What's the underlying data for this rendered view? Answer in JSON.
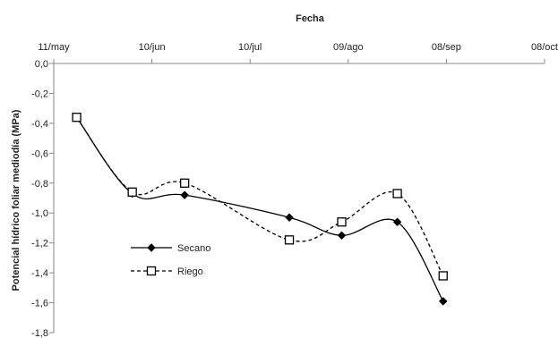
{
  "chart_data": {
    "type": "line",
    "xlabel": "Fecha",
    "ylabel": "Potencial hídrico foliar mediodía (MPa)",
    "x_axis_position": "top",
    "x_ticks": [
      "11/may",
      "10/jun",
      "10/jul",
      "09/ago",
      "08/sep",
      "08/oct"
    ],
    "x_tick_dates": [
      "2012-05-11",
      "2012-06-10",
      "2012-07-10",
      "2012-08-09",
      "2012-09-08",
      "2012-10-08"
    ],
    "ylim": [
      -1.8,
      0.0
    ],
    "y_ticks": [
      "0,0",
      "-0,2",
      "-0,4",
      "-0,6",
      "-0,8",
      "-1,0",
      "-1,2",
      "-1,4",
      "-1,6",
      "-1,8"
    ],
    "grid": false,
    "legend_position": "left-bottom",
    "series": [
      {
        "name": "Secano",
        "line_style": "solid",
        "marker": "filled-diamond",
        "color": "#000000",
        "x": [
          "2012-05-18",
          "2012-06-04",
          "2012-06-20",
          "2012-07-22",
          "2012-08-07",
          "2012-08-24",
          "2012-09-07"
        ],
        "y": [
          -0.36,
          -0.87,
          -0.88,
          -1.03,
          -1.15,
          -1.06,
          -1.59
        ]
      },
      {
        "name": "Riego",
        "line_style": "dashed",
        "marker": "open-square",
        "color": "#000000",
        "x": [
          "2012-05-18",
          "2012-06-04",
          "2012-06-20",
          "2012-07-22",
          "2012-08-07",
          "2012-08-24",
          "2012-09-07"
        ],
        "y": [
          -0.36,
          -0.86,
          -0.8,
          -1.18,
          -1.06,
          -0.87,
          -1.42
        ]
      }
    ]
  }
}
